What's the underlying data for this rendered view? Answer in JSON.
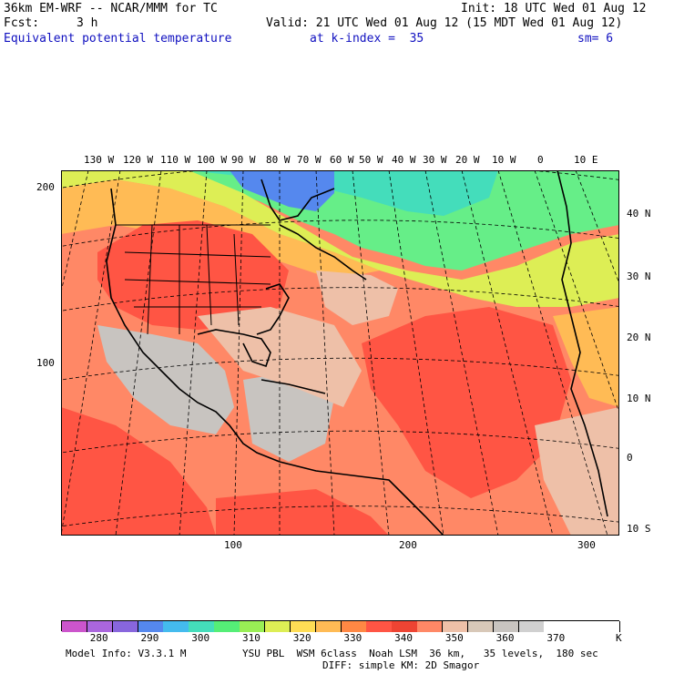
{
  "header": {
    "model_title": "36km EM-WRF -- NCAR/MMM for TC",
    "init": "Init: 18 UTC Wed 01 Aug 12",
    "fcst_label": "Fcst:",
    "fcst_value": "3 h",
    "valid": "Valid: 21 UTC Wed 01 Aug 12 (15 MDT Wed 01 Aug 12)",
    "field": "Equivalent potential temperature",
    "level": "at k-index =  35",
    "smoothing": "sm= 6"
  },
  "map": {
    "top_lon_labels": [
      "130 W",
      "120 W",
      "110 W",
      "100 W",
      "90 W",
      "80 W",
      "70 W",
      "60 W",
      "50 W",
      "40 W",
      "30 W",
      "20 W",
      "10 W",
      "0",
      "10 E"
    ],
    "right_lat_labels": [
      "40 N",
      "30 N",
      "20 N",
      "10 N",
      "0",
      "10 S"
    ],
    "left_grid_labels": [
      "200",
      "100"
    ],
    "bottom_grid_labels": [
      "100",
      "200",
      "300"
    ]
  },
  "colorbar": {
    "colors": [
      "#cc55cc",
      "#aa66dd",
      "#8866dd",
      "#5588ee",
      "#44bbee",
      "#44ddbb",
      "#55ee77",
      "#99ee55",
      "#ddee55",
      "#ffdd55",
      "#ffbb55",
      "#ff8844",
      "#ff5544",
      "#ee4433",
      "#ff8866",
      "#eec0a8",
      "#d8c8b8",
      "#c8c4c0",
      "#d0d0d0",
      "#ffffff",
      "#ffffff",
      "#ffffff"
    ],
    "labels": [
      "280",
      "290",
      "300",
      "310",
      "320",
      "330",
      "340",
      "350",
      "360",
      "370"
    ],
    "unit": "K"
  },
  "footer": {
    "model_info": "Model Info: V3.3.1 M",
    "physics": "YSU PBL  WSM 6class  Noah LSM  36 km,   35 levels,  180 sec",
    "diffusion": "DIFF: simple KM: 2D Smagor"
  }
}
